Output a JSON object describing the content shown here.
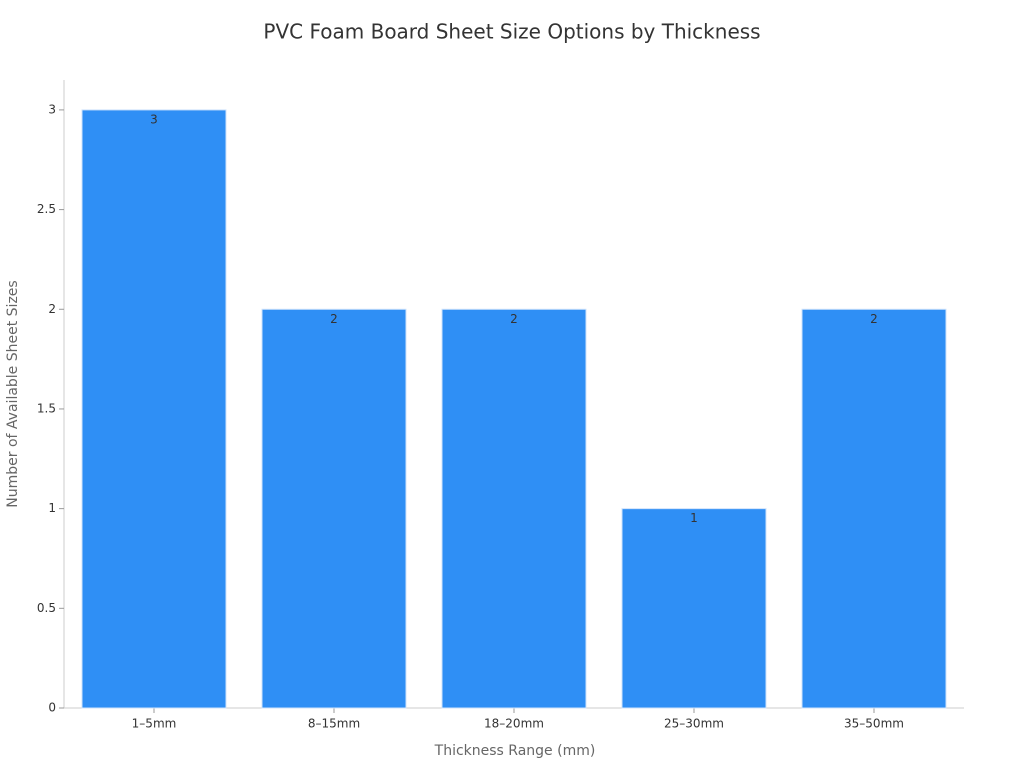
{
  "chart_data": {
    "type": "bar",
    "title": "PVC Foam Board Sheet Size Options by Thickness",
    "x_label": "Thickness Range (mm)",
    "y_label": "Number of Available Sheet Sizes",
    "categories": [
      "1–5mm",
      "8–15mm",
      "18–20mm",
      "25–30mm",
      "35–50mm"
    ],
    "values": [
      3,
      2,
      2,
      1,
      2
    ],
    "color": "#2f8ff5",
    "ylim": [
      0,
      3.15
    ],
    "yticks": [
      0,
      0.5,
      1,
      1.5,
      2,
      2.5,
      3
    ],
    "grid": false
  }
}
